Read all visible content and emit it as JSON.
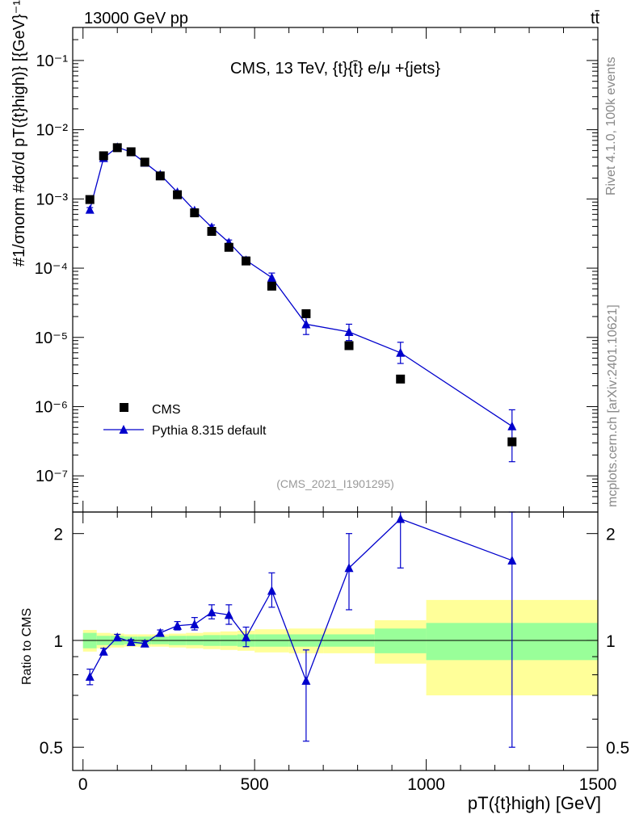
{
  "header": {
    "left": "13000 GeV pp",
    "right": "tt̄"
  },
  "side": {
    "rivet": "Rivet 4.1.0,  100k events",
    "mcplots": "mcplots.cern.ch [arXiv:2401.10621]"
  },
  "colors": {
    "mc": "#0000cc",
    "data": "#000000",
    "band_inner": "#99ff99",
    "band_outer": "#ffff99"
  },
  "chart_data": [
    {
      "type": "scatter",
      "title": "CMS, 13 TeV, {t}{t̄} e/μ +{jets}",
      "watermark": "(CMS_2021_I1901295)",
      "ylabel": "#1/σnorm #dσ/d pT({t}high)} [{GeV}⁻¹]",
      "yscale": "log",
      "ylim": [
        3e-08,
        0.3
      ],
      "xlim": [
        -30,
        1500
      ],
      "ytick_labels": [
        "10⁻⁷",
        "10⁻⁶",
        "10⁻⁵",
        "10⁻⁴",
        "10⁻³",
        "10⁻²",
        "10⁻¹"
      ],
      "legend": {
        "placement": "bottom-left",
        "entries": [
          "CMS",
          "Pythia 8.315 default"
        ]
      },
      "series": [
        {
          "name": "CMS",
          "x": [
            20,
            60,
            100,
            140,
            180,
            225,
            275,
            325,
            375,
            425,
            475,
            550,
            650,
            775,
            925,
            1250
          ],
          "y": [
            0.00098,
            0.0042,
            0.0055,
            0.0048,
            0.0034,
            0.00215,
            0.00115,
            0.00063,
            0.00034,
            0.0002,
            0.000127,
            5.5e-05,
            2.2e-05,
            7.6e-06,
            2.5e-06,
            3.1e-07
          ],
          "yerr_low": [
            0,
            0,
            0,
            0,
            0,
            0,
            0,
            0,
            0,
            0,
            0,
            0,
            0,
            0,
            0,
            0
          ],
          "yerr_high": [
            0,
            0,
            0,
            0,
            0,
            0,
            0,
            0,
            0,
            0,
            0,
            0,
            0,
            0,
            0,
            0
          ]
        },
        {
          "name": "Pythia 8.315 default",
          "x": [
            20,
            60,
            100,
            140,
            180,
            225,
            275,
            325,
            375,
            425,
            475,
            550,
            650,
            775,
            925,
            1250
          ],
          "y": [
            0.0007,
            0.0039,
            0.0056,
            0.00475,
            0.00335,
            0.00225,
            0.00125,
            0.00068,
            0.00039,
            0.000235,
            0.00013,
            7.3e-05,
            1.55e-05,
            1.2e-05,
            6e-06,
            5.2e-07
          ],
          "yerr_low": [
            5e-05,
            0.0002,
            0.0002,
            0.0002,
            0.0001,
            8e-05,
            6e-05,
            4e-05,
            3e-05,
            2e-05,
            1.5e-05,
            9e-06,
            4.5e-06,
            3e-06,
            1.8e-06,
            3.6e-07
          ],
          "yerr_high": [
            5e-05,
            0.0002,
            0.0002,
            0.0002,
            0.0001,
            8e-05,
            6e-05,
            4e-05,
            3e-05,
            2e-05,
            1.5e-05,
            1.2e-05,
            5e-06,
            3.5e-06,
            2.5e-06,
            3.8e-07
          ]
        }
      ]
    },
    {
      "type": "line",
      "ylabel": "Ratio to CMS",
      "xlabel": "pT({t}high) [GeV]",
      "yscale": "log",
      "ylim": [
        0.43,
        2.3
      ],
      "xlim": [
        -30,
        1500
      ],
      "ytick_labels": [
        "0.5",
        "1",
        "2"
      ],
      "xtick_labels": [
        "0",
        "500",
        "1000",
        "1500"
      ],
      "band_edges": [
        0,
        40,
        80,
        120,
        160,
        200,
        250,
        300,
        350,
        400,
        450,
        500,
        600,
        700,
        850,
        1000,
        1500
      ],
      "band_inner": [
        0.05,
        0.03,
        0.03,
        0.025,
        0.025,
        0.025,
        0.03,
        0.03,
        0.035,
        0.035,
        0.04,
        0.04,
        0.04,
        0.04,
        0.08,
        0.12,
        0.13
      ],
      "band_outer": [
        0.07,
        0.05,
        0.045,
        0.04,
        0.04,
        0.04,
        0.045,
        0.05,
        0.055,
        0.06,
        0.065,
        0.075,
        0.08,
        0.08,
        0.14,
        0.3,
        0.32
      ],
      "series": [
        {
          "name": "Pythia 8.315 default",
          "x": [
            20,
            60,
            100,
            140,
            180,
            225,
            275,
            325,
            375,
            425,
            475,
            550,
            650,
            775,
            925,
            1250
          ],
          "y": [
            0.79,
            0.93,
            1.02,
            0.99,
            0.98,
            1.05,
            1.1,
            1.11,
            1.2,
            1.18,
            1.02,
            1.38,
            0.77,
            1.6,
            2.2,
            1.68
          ],
          "yerr_low": [
            0.04,
            0.02,
            0.02,
            0.015,
            0.015,
            0.02,
            0.03,
            0.04,
            0.05,
            0.07,
            0.06,
            0.14,
            0.25,
            0.38,
            0.6,
            1.18
          ],
          "yerr_high": [
            0.04,
            0.02,
            0.02,
            0.015,
            0.015,
            0.02,
            0.03,
            0.05,
            0.06,
            0.08,
            0.07,
            0.17,
            0.17,
            0.4,
            0.1,
            0.65
          ]
        }
      ]
    }
  ]
}
